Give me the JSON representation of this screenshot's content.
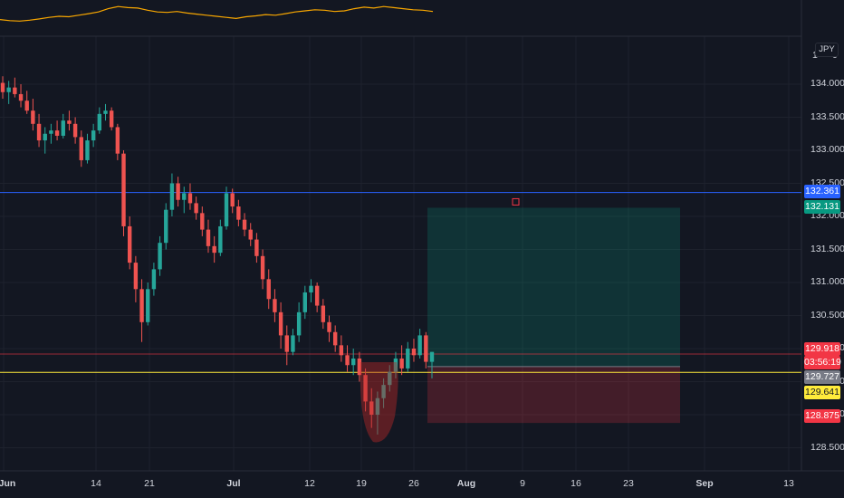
{
  "chart": {
    "symbol_currency": "JPY",
    "indicator_scale_label": "1",
    "indicator_scale_zero": "0"
  },
  "price_axis": {
    "ticks": [
      "134.000",
      "133.500",
      "133.000",
      "132.500",
      "132.000",
      "131.500",
      "131.000",
      "130.500",
      "130.000",
      "129.500",
      "129.000",
      "128.500"
    ]
  },
  "price_tags": {
    "blue_line": {
      "value": "132.361",
      "color": "#2962ff"
    },
    "take_profit": {
      "value": "132.131",
      "color": "#089981"
    },
    "last_price": {
      "value": "129.918",
      "color": "#f23645"
    },
    "countdown": {
      "value": "03:56:19",
      "color": "#f23645"
    },
    "entry": {
      "value": "129.727",
      "color": "#787b86"
    },
    "yellow_line": {
      "value": "129.641",
      "color": "#ffeb3b"
    },
    "stop_loss": {
      "value": "128.875",
      "color": "#f23645"
    }
  },
  "time_axis": {
    "labels": [
      {
        "text": "Jun",
        "bold": true
      },
      {
        "text": "14",
        "bold": false
      },
      {
        "text": "21",
        "bold": false
      },
      {
        "text": "Jul",
        "bold": true
      },
      {
        "text": "12",
        "bold": false
      },
      {
        "text": "19",
        "bold": false
      },
      {
        "text": "26",
        "bold": false
      },
      {
        "text": "Aug",
        "bold": true
      },
      {
        "text": "9",
        "bold": false
      },
      {
        "text": "16",
        "bold": false
      },
      {
        "text": "23",
        "bold": false
      },
      {
        "text": "Sep",
        "bold": true
      },
      {
        "text": "13",
        "bold": false
      }
    ]
  },
  "chart_data": {
    "type": "candlestick",
    "price_range": [
      128.1,
      134.5
    ],
    "horizontal_lines": [
      {
        "value": 132.361,
        "color": "#2962ff"
      },
      {
        "value": 129.641,
        "color": "#ffeb3b"
      },
      {
        "value": 129.918,
        "color": "#f23645"
      }
    ],
    "position_tool": {
      "entry": 129.727,
      "take_profit": 132.131,
      "stop_loss": 128.875,
      "start_date": "Jul 27",
      "end_date": "Aug 28"
    },
    "candles": [
      [
        134.02,
        134.12,
        133.78,
        133.88
      ],
      [
        133.88,
        134.05,
        133.7,
        133.95
      ],
      [
        133.95,
        134.1,
        133.8,
        133.85
      ],
      [
        133.85,
        134.0,
        133.65,
        133.75
      ],
      [
        133.75,
        133.9,
        133.55,
        133.6
      ],
      [
        133.6,
        133.78,
        133.3,
        133.4
      ],
      [
        133.4,
        133.55,
        133.05,
        133.15
      ],
      [
        133.15,
        133.35,
        132.95,
        133.25
      ],
      [
        133.25,
        133.4,
        133.1,
        133.3
      ],
      [
        133.3,
        133.45,
        133.15,
        133.22
      ],
      [
        133.22,
        133.55,
        133.18,
        133.45
      ],
      [
        133.45,
        133.6,
        133.3,
        133.4
      ],
      [
        133.4,
        133.5,
        133.1,
        133.2
      ],
      [
        133.2,
        133.3,
        132.75,
        132.85
      ],
      [
        132.85,
        133.25,
        132.8,
        133.15
      ],
      [
        133.15,
        133.4,
        133.05,
        133.3
      ],
      [
        133.3,
        133.65,
        133.25,
        133.55
      ],
      [
        133.55,
        133.7,
        133.45,
        133.6
      ],
      [
        133.6,
        133.65,
        133.3,
        133.35
      ],
      [
        133.35,
        133.4,
        132.85,
        132.95
      ],
      [
        132.95,
        133.0,
        131.7,
        131.85
      ],
      [
        131.85,
        132.0,
        131.2,
        131.3
      ],
      [
        131.3,
        131.4,
        130.7,
        130.9
      ],
      [
        130.9,
        131.05,
        130.1,
        130.4
      ],
      [
        130.4,
        131.0,
        130.35,
        130.9
      ],
      [
        130.9,
        131.3,
        130.8,
        131.2
      ],
      [
        131.2,
        131.7,
        131.1,
        131.6
      ],
      [
        131.6,
        132.2,
        131.5,
        132.1
      ],
      [
        132.1,
        132.65,
        132.0,
        132.5
      ],
      [
        132.5,
        132.6,
        132.15,
        132.25
      ],
      [
        132.25,
        132.45,
        132.05,
        132.35
      ],
      [
        132.35,
        132.5,
        132.1,
        132.2
      ],
      [
        132.2,
        132.3,
        131.95,
        132.05
      ],
      [
        132.05,
        132.15,
        131.7,
        131.8
      ],
      [
        131.8,
        131.95,
        131.45,
        131.55
      ],
      [
        131.55,
        131.7,
        131.3,
        131.45
      ],
      [
        131.45,
        131.95,
        131.4,
        131.85
      ],
      [
        131.85,
        132.45,
        131.8,
        132.35
      ],
      [
        132.35,
        132.42,
        132.05,
        132.15
      ],
      [
        132.15,
        132.25,
        131.85,
        131.95
      ],
      [
        131.95,
        132.05,
        131.7,
        131.8
      ],
      [
        131.8,
        131.9,
        131.55,
        131.65
      ],
      [
        131.65,
        131.75,
        131.3,
        131.4
      ],
      [
        131.4,
        131.5,
        130.9,
        131.05
      ],
      [
        131.05,
        131.2,
        130.6,
        130.75
      ],
      [
        130.75,
        130.9,
        130.4,
        130.55
      ],
      [
        130.55,
        130.7,
        130.0,
        130.2
      ],
      [
        130.2,
        130.35,
        129.75,
        129.95
      ],
      [
        129.95,
        130.3,
        129.9,
        130.2
      ],
      [
        130.2,
        130.7,
        130.1,
        130.55
      ],
      [
        130.55,
        130.95,
        130.45,
        130.85
      ],
      [
        130.85,
        131.05,
        130.7,
        130.95
      ],
      [
        130.95,
        131.0,
        130.55,
        130.65
      ],
      [
        130.65,
        130.75,
        130.3,
        130.4
      ],
      [
        130.4,
        130.5,
        130.1,
        130.25
      ],
      [
        130.25,
        130.35,
        129.95,
        130.05
      ],
      [
        130.05,
        130.2,
        129.8,
        129.9
      ],
      [
        129.9,
        130.05,
        129.65,
        129.75
      ],
      [
        129.75,
        130.0,
        129.6,
        129.85
      ],
      [
        129.85,
        129.95,
        129.5,
        129.6
      ],
      [
        129.6,
        129.7,
        129.05,
        129.2
      ],
      [
        129.2,
        129.4,
        128.8,
        129.0
      ],
      [
        129.0,
        129.35,
        128.7,
        129.25
      ],
      [
        129.25,
        129.55,
        129.1,
        129.45
      ],
      [
        129.45,
        129.75,
        129.35,
        129.65
      ],
      [
        129.65,
        129.95,
        129.55,
        129.85
      ],
      [
        129.85,
        130.05,
        129.6,
        129.7
      ],
      [
        129.7,
        130.1,
        129.65,
        130.0
      ],
      [
        130.0,
        130.15,
        129.8,
        129.9
      ],
      [
        129.9,
        130.3,
        129.85,
        130.2
      ],
      [
        130.2,
        130.25,
        129.7,
        129.8
      ],
      [
        129.8,
        129.95,
        129.55,
        129.95
      ]
    ]
  },
  "indicator_data": {
    "values": [
      0.35,
      0.3,
      0.28,
      0.32,
      0.38,
      0.45,
      0.5,
      0.48,
      0.55,
      0.62,
      0.7,
      0.85,
      0.95,
      0.9,
      0.88,
      0.78,
      0.7,
      0.68,
      0.72,
      0.65,
      0.6,
      0.55,
      0.5,
      0.45,
      0.4,
      0.48,
      0.52,
      0.58,
      0.55,
      0.62,
      0.7,
      0.75,
      0.8,
      0.78,
      0.72,
      0.75,
      0.85,
      0.92,
      0.88,
      0.95,
      0.9,
      0.85,
      0.8,
      0.78,
      0.72
    ]
  }
}
